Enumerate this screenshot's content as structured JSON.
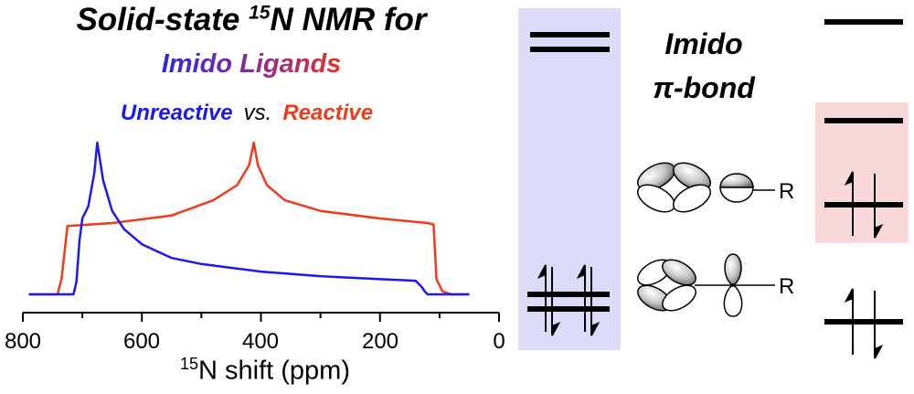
{
  "title": {
    "prefix": "Solid-state ",
    "sup": "15",
    "suffix": "N NMR for"
  },
  "subtitle": {
    "word1": "Imido",
    "word2": "Ligands"
  },
  "legend": {
    "unreactive": "Unreactive",
    "vs": "vs.",
    "reactive": "Reactive"
  },
  "xaxis": {
    "ticks": [
      "800",
      "600",
      "400",
      "200",
      "0"
    ],
    "label_sup": "15",
    "label_rest": "N shift (ppm)"
  },
  "mo_label": {
    "line1": "Imido",
    "line2": "π-bond"
  },
  "orbital_labels": {
    "upper_r": "R",
    "lower_r": "R"
  },
  "colors": {
    "unreactive": "#1a1af0",
    "reactive": "#f03a1a",
    "blue_panel": "#dcdcfa",
    "red_panel": "#f8d8d8"
  },
  "chart_data": {
    "type": "line",
    "xlabel": "15N shift (ppm)",
    "xlim": [
      800,
      0
    ],
    "reversed_x": true,
    "series": [
      {
        "name": "Unreactive",
        "color": "#1a1af0",
        "x": [
          790,
          715,
          710,
          705,
          700,
          690,
          680,
          675,
          665,
          650,
          630,
          600,
          550,
          500,
          400,
          300,
          200,
          140,
          130,
          125,
          120,
          90,
          50
        ],
        "y": [
          0.0,
          0.0,
          0.08,
          0.35,
          0.5,
          0.58,
          0.8,
          1.0,
          0.75,
          0.55,
          0.43,
          0.33,
          0.24,
          0.2,
          0.15,
          0.12,
          0.1,
          0.09,
          0.05,
          0.02,
          0.0,
          0.0,
          0.0
        ]
      },
      {
        "name": "Reactive",
        "color": "#f03a1a",
        "x": [
          790,
          742,
          735,
          725,
          650,
          550,
          480,
          440,
          420,
          412,
          405,
          390,
          360,
          300,
          200,
          120,
          110,
          105,
          95,
          80,
          50
        ],
        "y": [
          0.0,
          0.0,
          0.1,
          0.45,
          0.47,
          0.52,
          0.62,
          0.72,
          0.85,
          1.0,
          0.85,
          0.72,
          0.62,
          0.55,
          0.5,
          0.47,
          0.46,
          0.1,
          0.02,
          0.0,
          0.0
        ]
      }
    ]
  }
}
